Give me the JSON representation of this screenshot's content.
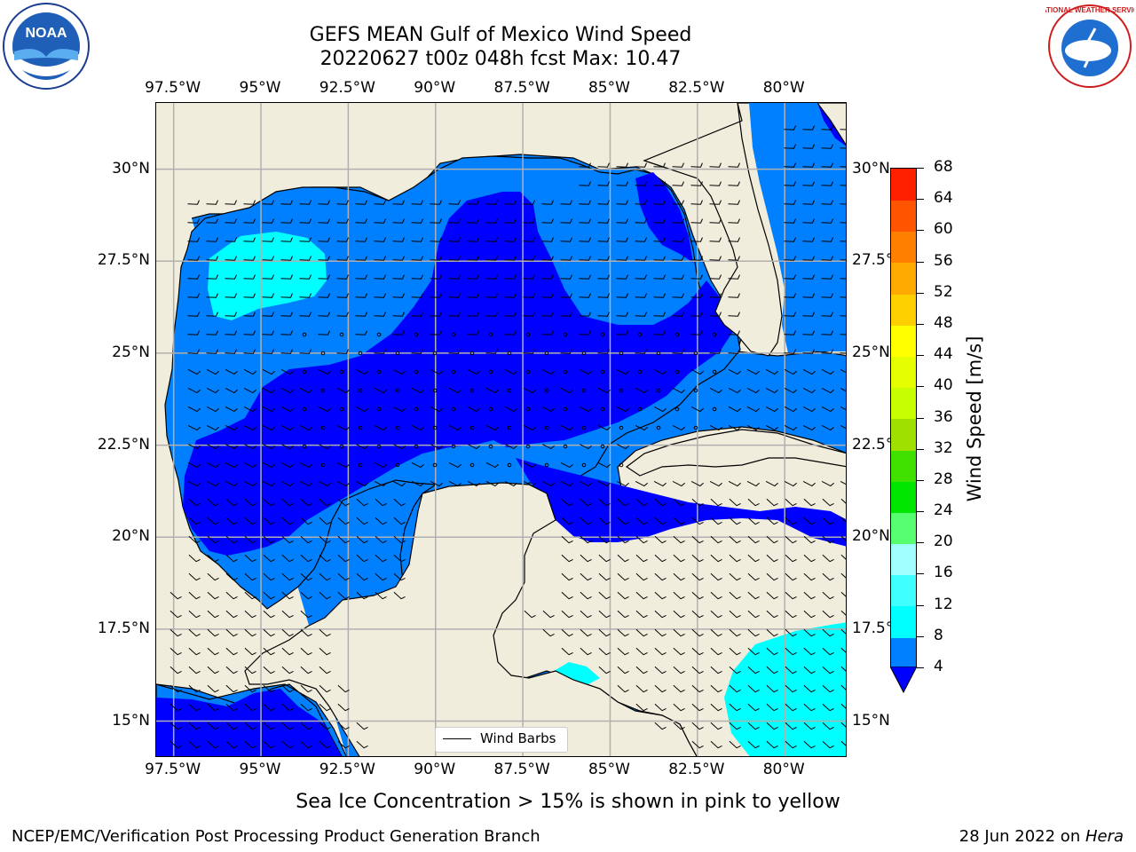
{
  "title": {
    "line1": "GEFS MEAN Gulf of Mexico Wind Speed",
    "line2": "20220627 t00z 048h fcst   Max: 10.47"
  },
  "logos": {
    "noaa_text": "NOAA",
    "nws_text": "NATIONAL WEATHER SERVICE"
  },
  "axes": {
    "lon_ticks": [
      "97.5°W",
      "95°W",
      "92.5°W",
      "90°W",
      "87.5°W",
      "85°W",
      "82.5°W",
      "80°W"
    ],
    "lon_values": [
      -97.5,
      -95,
      -92.5,
      -90,
      -87.5,
      -85,
      -82.5,
      -80
    ],
    "lat_ticks": [
      "30°N",
      "27.5°N",
      "25°N",
      "22.5°N",
      "20°N",
      "17.5°N",
      "15°N"
    ],
    "lat_values": [
      30,
      27.5,
      25,
      22.5,
      20,
      17.5,
      15
    ],
    "lon_range": [
      -98,
      -78.2
    ],
    "lat_range": [
      14,
      31.8
    ]
  },
  "colorbar": {
    "label": "Wind Speed [m/s]",
    "ticks": [
      "68",
      "64",
      "60",
      "56",
      "52",
      "48",
      "44",
      "40",
      "36",
      "32",
      "28",
      "24",
      "20",
      "16",
      "12",
      "8",
      "4"
    ],
    "levels": [
      4,
      8,
      12,
      16,
      20,
      24,
      28,
      32,
      36,
      40,
      44,
      48,
      52,
      56,
      60,
      64,
      68
    ],
    "colors": [
      "#0080ff",
      "#00ffff",
      "#40ffff",
      "#a0ffff",
      "#55ff70",
      "#00e600",
      "#40e000",
      "#a0e000",
      "#c8ff00",
      "#e6ff00",
      "#ffff00",
      "#ffd000",
      "#ffaa00",
      "#ff8000",
      "#ff5500",
      "#ff2000"
    ],
    "extend_color": "#0000ff"
  },
  "legend": {
    "label": "Wind Barbs"
  },
  "subtitle": "Sea Ice Concentration > 15% is shown in pink to yellow",
  "footer": {
    "left": "NCEP/EMC/Verification Post Processing Product Generation Branch",
    "date": "28 Jun 2022 on ",
    "machine": "Hera"
  },
  "colors": {
    "land": "#f0eddc",
    "wind_0_4": "#0000ff",
    "wind_4_8": "#0080ff",
    "wind_8_12": "#00ffff",
    "grid": "#b0b0b0"
  }
}
